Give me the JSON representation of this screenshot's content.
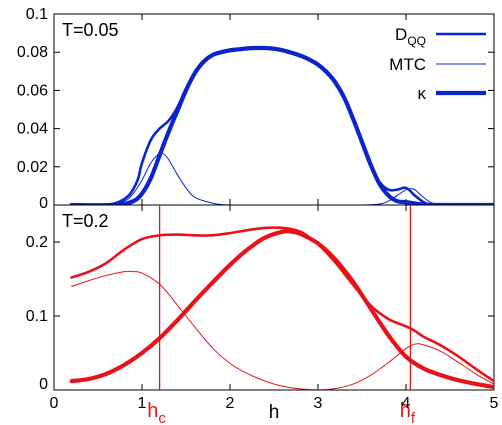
{
  "chart_data": [
    {
      "type": "line",
      "panel": "top",
      "annotation": "T=0.05",
      "xlim": [
        0,
        5
      ],
      "ylim": [
        0,
        0.1
      ],
      "y_ticks": [
        0,
        0.02,
        0.04,
        0.06,
        0.08,
        0.1
      ],
      "y_tick_labels": [
        "0",
        "0.02",
        "0.04",
        "0.06",
        "0.08",
        "0.1"
      ],
      "grid": false,
      "legend_position": "top-right",
      "color": "#0b24cc",
      "series": [
        {
          "name": "D_QQ",
          "name_main": "D",
          "name_sub": "QQ",
          "x": [
            0.2,
            0.5,
            0.7,
            0.85,
            0.95,
            1.0,
            1.1,
            1.2,
            1.3,
            1.4,
            1.5,
            1.6,
            1.7,
            1.8,
            1.9,
            2.0,
            2.1,
            2.2,
            2.3,
            2.4,
            2.5,
            2.6,
            2.7,
            2.8,
            2.9,
            3.0,
            3.1,
            3.2,
            3.3,
            3.4,
            3.5,
            3.6,
            3.7,
            3.8,
            3.9,
            4.0,
            4.1,
            4.2,
            4.3,
            4.5,
            5.0
          ],
          "y": [
            0,
            0,
            0.001,
            0.005,
            0.013,
            0.022,
            0.034,
            0.04,
            0.044,
            0.051,
            0.061,
            0.069,
            0.075,
            0.0785,
            0.08,
            0.081,
            0.0815,
            0.082,
            0.0822,
            0.0822,
            0.0818,
            0.081,
            0.0797,
            0.0782,
            0.0762,
            0.0735,
            0.0695,
            0.064,
            0.056,
            0.045,
            0.032,
            0.02,
            0.012,
            0.008,
            0.008,
            0.009,
            0.005,
            0.0015,
            0,
            0,
            0
          ]
        },
        {
          "name": "MTC",
          "x": [
            0.2,
            0.6,
            0.8,
            0.9,
            1.0,
            1.1,
            1.2,
            1.25,
            1.3,
            1.4,
            1.5,
            1.6,
            1.8,
            2.0,
            2.5,
            3.0,
            3.5,
            3.7,
            3.8,
            3.9,
            4.0,
            4.05,
            4.1,
            4.2,
            4.3,
            4.5,
            5.0
          ],
          "y": [
            0,
            0,
            0.002,
            0.006,
            0.013,
            0.022,
            0.027,
            0.0265,
            0.024,
            0.016,
            0.009,
            0.004,
            0.001,
            0,
            0,
            0,
            0,
            0.0005,
            0.002,
            0.005,
            0.008,
            0.0085,
            0.008,
            0.004,
            0.001,
            0,
            0
          ]
        },
        {
          "name": "κ",
          "x": [
            0.2,
            0.7,
            0.9,
            1.0,
            1.1,
            1.2,
            1.3,
            1.4,
            1.5,
            1.6,
            1.7,
            1.8,
            1.9,
            2.0,
            2.1,
            2.2,
            2.3,
            2.4,
            2.5,
            2.6,
            2.7,
            2.8,
            2.9,
            3.0,
            3.1,
            3.2,
            3.3,
            3.4,
            3.5,
            3.6,
            3.7,
            3.8,
            3.9,
            4.0,
            4.1,
            4.2,
            4.3,
            4.5,
            5.0
          ],
          "y": [
            0,
            0,
            0.002,
            0.006,
            0.014,
            0.026,
            0.038,
            0.049,
            0.06,
            0.069,
            0.075,
            0.0785,
            0.08,
            0.081,
            0.0815,
            0.082,
            0.0822,
            0.0822,
            0.0818,
            0.081,
            0.0797,
            0.0782,
            0.0762,
            0.0735,
            0.0695,
            0.064,
            0.056,
            0.045,
            0.033,
            0.021,
            0.011,
            0.005,
            0.002,
            0.0015,
            0.0008,
            0.0002,
            0,
            0,
            0
          ]
        }
      ]
    },
    {
      "type": "line",
      "panel": "bottom",
      "annotation": "T=0.2",
      "xlabel": "h",
      "xlim": [
        0,
        5
      ],
      "ylim": [
        0,
        0.25
      ],
      "x_ticks": [
        0,
        1,
        2,
        3,
        4,
        5
      ],
      "x_tick_labels": [
        "0",
        "1",
        "2",
        "3",
        "4",
        "5"
      ],
      "y_ticks": [
        0,
        0.1,
        0.2
      ],
      "y_tick_labels": [
        "0",
        "0.1",
        "0.2"
      ],
      "grid": false,
      "color": "#e8131a",
      "vertical_markers": [
        {
          "x": 1.2,
          "label_main": "h",
          "label_sub": "c"
        },
        {
          "x": 4.05,
          "label_main": "h",
          "label_sub": "f"
        }
      ],
      "series": [
        {
          "name": "D_QQ",
          "x": [
            0.2,
            0.4,
            0.6,
            0.8,
            1.0,
            1.2,
            1.4,
            1.6,
            1.8,
            2.0,
            2.2,
            2.4,
            2.6,
            2.8,
            3.0,
            3.2,
            3.4,
            3.6,
            3.8,
            4.0,
            4.1,
            4.2,
            4.4,
            4.6,
            4.8,
            5.0
          ],
          "y": [
            0.152,
            0.16,
            0.172,
            0.19,
            0.204,
            0.209,
            0.21,
            0.209,
            0.209,
            0.212,
            0.216,
            0.219,
            0.219,
            0.214,
            0.197,
            0.172,
            0.142,
            0.114,
            0.096,
            0.086,
            0.08,
            0.072,
            0.06,
            0.045,
            0.028,
            0.012
          ]
        },
        {
          "name": "MTC",
          "x": [
            0.2,
            0.4,
            0.6,
            0.8,
            0.9,
            1.0,
            1.2,
            1.4,
            1.6,
            1.8,
            2.0,
            2.2,
            2.4,
            2.6,
            2.8,
            3.0,
            3.2,
            3.4,
            3.6,
            3.8,
            4.0,
            4.1,
            4.2,
            4.4,
            4.6,
            4.8,
            5.0
          ],
          "y": [
            0.14,
            0.148,
            0.155,
            0.16,
            0.16,
            0.158,
            0.143,
            0.115,
            0.085,
            0.057,
            0.036,
            0.022,
            0.012,
            0.005,
            0.0015,
            0.0005,
            0.002,
            0.008,
            0.02,
            0.037,
            0.056,
            0.062,
            0.061,
            0.052,
            0.037,
            0.021,
            0.008
          ]
        },
        {
          "name": "κ",
          "x": [
            0.2,
            0.4,
            0.6,
            0.8,
            1.0,
            1.2,
            1.4,
            1.6,
            1.8,
            2.0,
            2.2,
            2.4,
            2.6,
            2.7,
            2.8,
            3.0,
            3.2,
            3.4,
            3.6,
            3.8,
            4.0,
            4.2,
            4.4,
            4.6,
            4.8,
            5.0
          ],
          "y": [
            0.012,
            0.015,
            0.022,
            0.034,
            0.05,
            0.07,
            0.094,
            0.12,
            0.145,
            0.169,
            0.19,
            0.206,
            0.214,
            0.214,
            0.211,
            0.198,
            0.176,
            0.146,
            0.11,
            0.074,
            0.045,
            0.029,
            0.02,
            0.013,
            0.008,
            0.004
          ]
        }
      ]
    }
  ]
}
